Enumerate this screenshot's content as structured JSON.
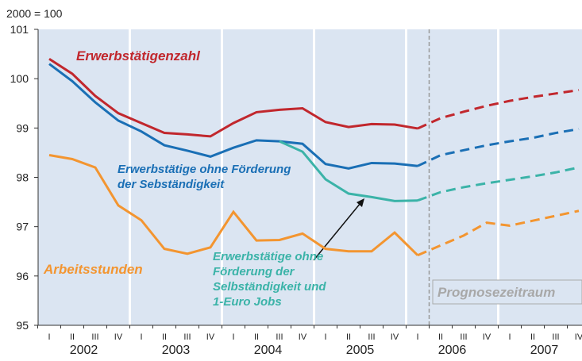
{
  "chart_data": {
    "type": "line",
    "unit_label": "2000 = 100",
    "categories": [
      "I",
      "II",
      "III",
      "IV",
      "I",
      "II",
      "III",
      "IV",
      "I",
      "II",
      "III",
      "IV",
      "I",
      "II",
      "III",
      "IV",
      "I",
      "II",
      "III",
      "IV",
      "I",
      "II",
      "III",
      "IV"
    ],
    "year_labels": [
      "2002",
      "2003",
      "2004",
      "2005",
      "2006",
      "2007"
    ],
    "ylim": [
      95,
      101
    ],
    "yticks": [
      95,
      96,
      97,
      98,
      99,
      100,
      101
    ],
    "forecast_from_index": 16,
    "forecast_label": "Prognosezeitraum",
    "series": [
      {
        "name": "Erwerbstätigenzahl",
        "color": "#c1272d",
        "values": [
          100.4,
          100.1,
          99.65,
          99.3,
          99.1,
          98.9,
          98.87,
          98.83,
          99.1,
          99.32,
          99.37,
          99.4,
          99.12,
          99.02,
          99.08,
          99.07,
          98.99,
          99.2,
          99.33,
          99.45,
          99.55,
          99.63,
          99.7,
          99.77
        ]
      },
      {
        "name": "Erwerbstätige ohne Förderung der Sebständigkeit",
        "color": "#1a6fb5",
        "values": [
          100.3,
          99.95,
          99.52,
          99.15,
          98.93,
          98.65,
          98.54,
          98.42,
          98.6,
          98.75,
          98.73,
          98.68,
          98.27,
          98.18,
          98.29,
          98.28,
          98.23,
          98.45,
          98.55,
          98.65,
          98.73,
          98.8,
          98.9,
          98.98
        ]
      },
      {
        "name": "Erwerbstätige ohne Förderung der Selbständigkeit und 1-Euro Jobs",
        "color": "#3bb3a8",
        "values": [
          null,
          null,
          null,
          null,
          null,
          null,
          null,
          null,
          null,
          null,
          98.73,
          98.52,
          97.96,
          97.67,
          97.6,
          97.52,
          97.53,
          97.7,
          97.8,
          97.88,
          97.95,
          98.02,
          98.1,
          98.2
        ]
      },
      {
        "name": "Arbeitsstunden",
        "color": "#f39530",
        "values": [
          98.45,
          98.37,
          98.2,
          97.43,
          97.13,
          96.55,
          96.45,
          96.58,
          97.3,
          96.72,
          96.73,
          96.86,
          96.55,
          96.5,
          96.5,
          96.88,
          96.42,
          96.62,
          96.82,
          97.08,
          97.02,
          97.12,
          97.22,
          97.32
        ]
      }
    ]
  }
}
